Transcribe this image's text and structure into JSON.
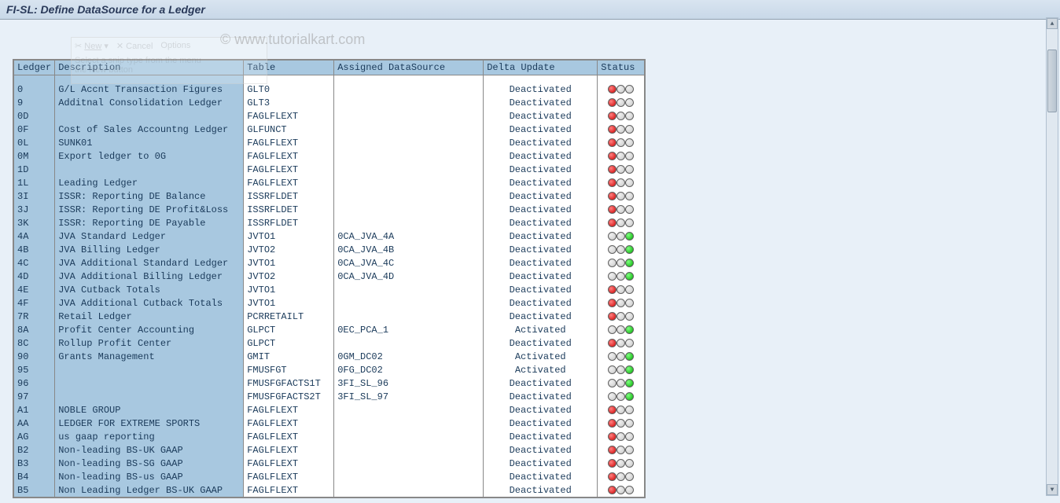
{
  "title": "FI-SL: Define DataSource for a Ledger",
  "watermark": "© www.tutorialkart.com",
  "snip_hint_line1": "Select a snip type from the menu",
  "snip_hint_line2": "the New button",
  "snip_new": "New",
  "snip_cancel": "Cancel",
  "snip_options": "Options",
  "columns": {
    "ledger": "Ledger",
    "description": "Description",
    "table": "Table",
    "datasource": "Assigned DataSource",
    "delta": "Delta Update",
    "status": "Status"
  },
  "status_types": {
    "red": "red",
    "green": "green"
  },
  "rows": [
    {
      "ledger": "0",
      "desc": "G/L Accnt Transaction Figures",
      "table": "GLT0",
      "ds": "",
      "delta": "Deactivated",
      "status": "red"
    },
    {
      "ledger": "9",
      "desc": "Additnal Consolidation Ledger",
      "table": "GLT3",
      "ds": "",
      "delta": "Deactivated",
      "status": "red"
    },
    {
      "ledger": "0D",
      "desc": "",
      "table": "FAGLFLEXT",
      "ds": "",
      "delta": "Deactivated",
      "status": "red"
    },
    {
      "ledger": "0F",
      "desc": "Cost of Sales Accountng Ledger",
      "table": "GLFUNCT",
      "ds": "",
      "delta": "Deactivated",
      "status": "red"
    },
    {
      "ledger": "0L",
      "desc": "SUNK01",
      "table": "FAGLFLEXT",
      "ds": "",
      "delta": "Deactivated",
      "status": "red"
    },
    {
      "ledger": "0M",
      "desc": "Export ledger to 0G",
      "table": "FAGLFLEXT",
      "ds": "",
      "delta": "Deactivated",
      "status": "red"
    },
    {
      "ledger": "1D",
      "desc": "",
      "table": "FAGLFLEXT",
      "ds": "",
      "delta": "Deactivated",
      "status": "red"
    },
    {
      "ledger": "1L",
      "desc": "Leading Ledger",
      "table": "FAGLFLEXT",
      "ds": "",
      "delta": "Deactivated",
      "status": "red"
    },
    {
      "ledger": "3I",
      "desc": "ISSR: Reporting DE Balance",
      "table": "ISSRFLDET",
      "ds": "",
      "delta": "Deactivated",
      "status": "red"
    },
    {
      "ledger": "3J",
      "desc": "ISSR: Reporting DE Profit&Loss",
      "table": "ISSRFLDET",
      "ds": "",
      "delta": "Deactivated",
      "status": "red"
    },
    {
      "ledger": "3K",
      "desc": "ISSR: Reporting DE Payable",
      "table": "ISSRFLDET",
      "ds": "",
      "delta": "Deactivated",
      "status": "red"
    },
    {
      "ledger": "4A",
      "desc": "JVA Standard Ledger",
      "table": "JVTO1",
      "ds": "0CA_JVA_4A",
      "delta": "Deactivated",
      "status": "green"
    },
    {
      "ledger": "4B",
      "desc": "JVA Billing Ledger",
      "table": "JVTO2",
      "ds": "0CA_JVA_4B",
      "delta": "Deactivated",
      "status": "green"
    },
    {
      "ledger": "4C",
      "desc": "JVA Additional Standard Ledger",
      "table": "JVTO1",
      "ds": "0CA_JVA_4C",
      "delta": "Deactivated",
      "status": "green"
    },
    {
      "ledger": "4D",
      "desc": "JVA Additional Billing Ledger",
      "table": "JVTO2",
      "ds": "0CA_JVA_4D",
      "delta": "Deactivated",
      "status": "green"
    },
    {
      "ledger": "4E",
      "desc": "JVA Cutback Totals",
      "table": "JVTO1",
      "ds": "",
      "delta": "Deactivated",
      "status": "red"
    },
    {
      "ledger": "4F",
      "desc": "JVA Additional Cutback Totals",
      "table": "JVTO1",
      "ds": "",
      "delta": "Deactivated",
      "status": "red"
    },
    {
      "ledger": "7R",
      "desc": "Retail Ledger",
      "table": "PCRRETAILT",
      "ds": "",
      "delta": "Deactivated",
      "status": "red"
    },
    {
      "ledger": "8A",
      "desc": "Profit Center Accounting",
      "table": "GLPCT",
      "ds": "0EC_PCA_1",
      "delta": "Activated",
      "status": "green"
    },
    {
      "ledger": "8C",
      "desc": "Rollup Profit Center",
      "table": "GLPCT",
      "ds": "",
      "delta": "Deactivated",
      "status": "red"
    },
    {
      "ledger": "90",
      "desc": "Grants Management",
      "table": "GMIT",
      "ds": "0GM_DC02",
      "delta": "Activated",
      "status": "green"
    },
    {
      "ledger": "95",
      "desc": "",
      "table": "FMUSFGT",
      "ds": "0FG_DC02",
      "delta": "Activated",
      "status": "green"
    },
    {
      "ledger": "96",
      "desc": "",
      "table": "FMUSFGFACTS1T",
      "ds": "3FI_SL_96",
      "delta": "Deactivated",
      "status": "green"
    },
    {
      "ledger": "97",
      "desc": "",
      "table": "FMUSFGFACTS2T",
      "ds": "3FI_SL_97",
      "delta": "Deactivated",
      "status": "green"
    },
    {
      "ledger": "A1",
      "desc": "NOBLE GROUP",
      "table": "FAGLFLEXT",
      "ds": "",
      "delta": "Deactivated",
      "status": "red"
    },
    {
      "ledger": "AA",
      "desc": "LEDGER FOR EXTREME SPORTS",
      "table": "FAGLFLEXT",
      "ds": "",
      "delta": "Deactivated",
      "status": "red"
    },
    {
      "ledger": "AG",
      "desc": "us gaap reporting",
      "table": "FAGLFLEXT",
      "ds": "",
      "delta": "Deactivated",
      "status": "red"
    },
    {
      "ledger": "B2",
      "desc": "Non-leading BS-UK GAAP",
      "table": "FAGLFLEXT",
      "ds": "",
      "delta": "Deactivated",
      "status": "red"
    },
    {
      "ledger": "B3",
      "desc": "Non-leading BS-SG GAAP",
      "table": "FAGLFLEXT",
      "ds": "",
      "delta": "Deactivated",
      "status": "red"
    },
    {
      "ledger": "B4",
      "desc": "Non-leading BS-us GAAP",
      "table": "FAGLFLEXT",
      "ds": "",
      "delta": "Deactivated",
      "status": "red"
    },
    {
      "ledger": "B5",
      "desc": "Non Leading Ledger BS-UK GAAP",
      "table": "FAGLFLEXT",
      "ds": "",
      "delta": "Deactivated",
      "status": "red"
    }
  ]
}
